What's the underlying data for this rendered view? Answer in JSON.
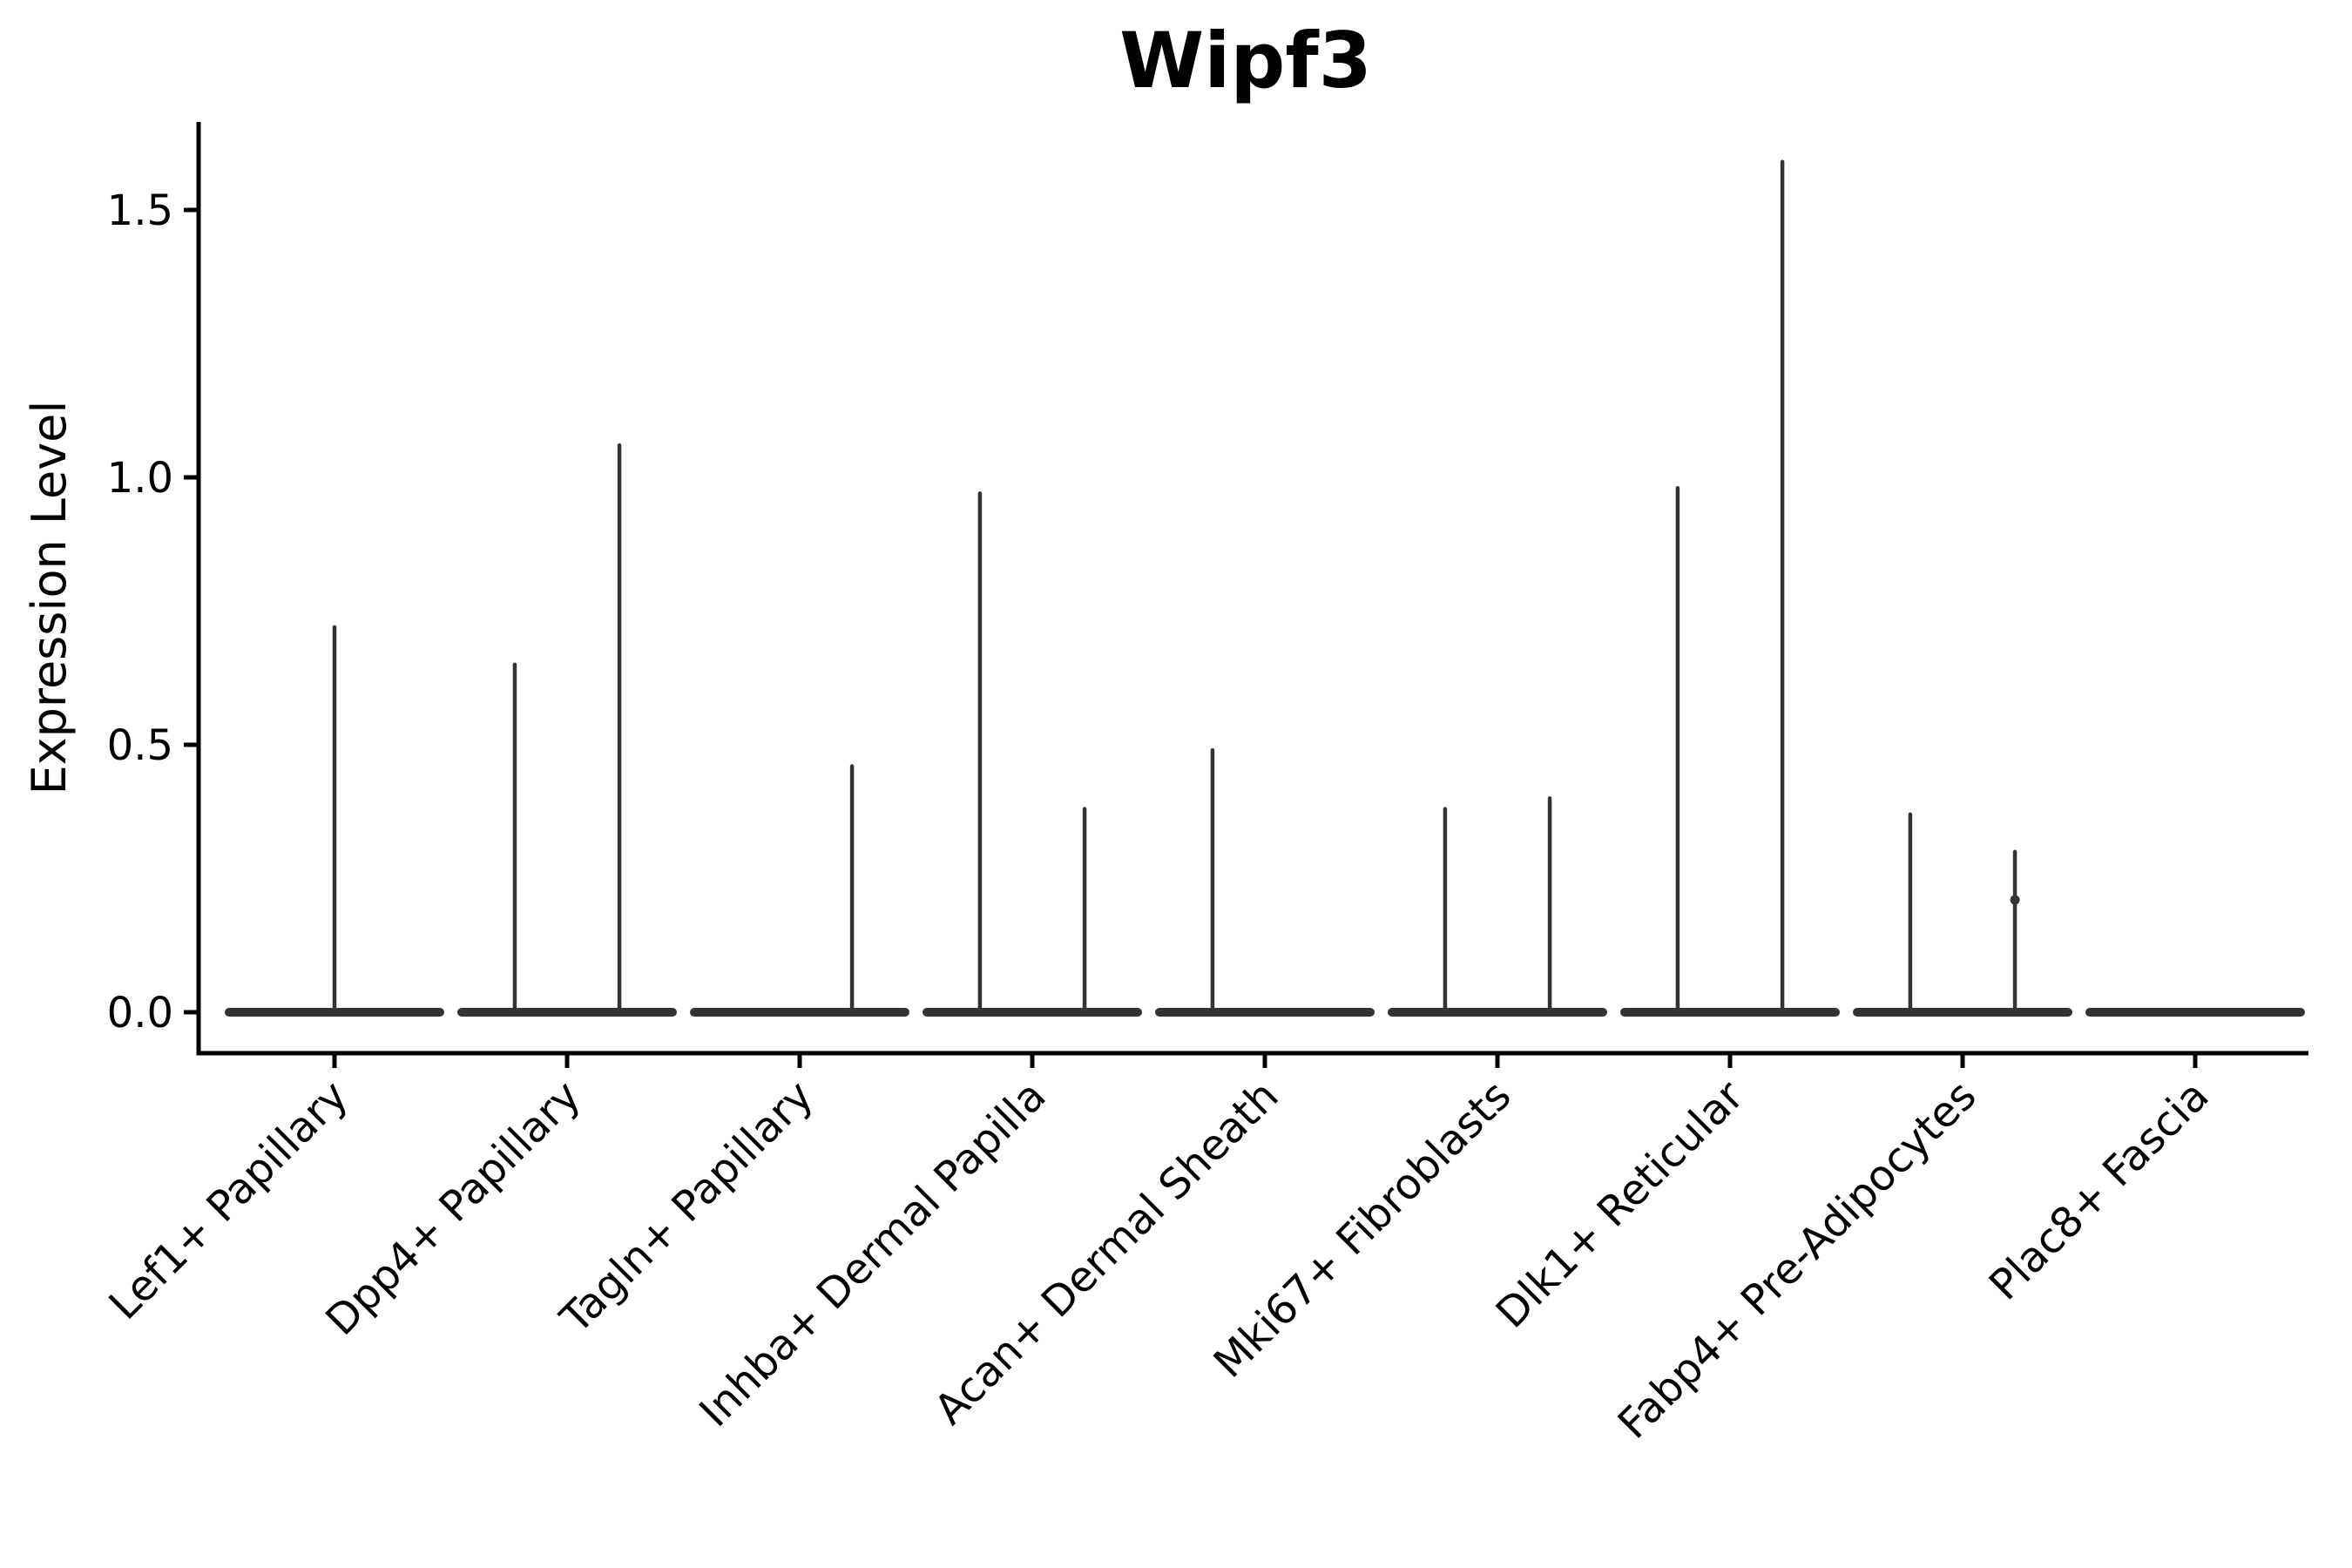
{
  "title": "Wipf3",
  "axes": {
    "y_label": "Expression Level",
    "y_ticks": [
      {
        "label": "0.0",
        "value": 0.0
      },
      {
        "label": "0.5",
        "value": 0.5
      },
      {
        "label": "1.0",
        "value": 1.0
      },
      {
        "label": "1.5",
        "value": 1.5
      }
    ],
    "x_labels": [
      "Lef1+ Papillary",
      "Dpp4+ Papillary",
      "Tagln+ Papillary",
      "Inhba+ Dermal Papilla",
      "Acan+ Dermal Sheath",
      "Mki67+ Fibroblasts",
      "Dlk1+ Reticular",
      "Fabp4+ Pre-Adipocytes",
      "Plac8+ Fascia"
    ]
  },
  "colors": {
    "ink": "#000000",
    "violin": "#333333",
    "background": "#ffffff"
  },
  "chart_data": {
    "type": "violin",
    "title": "Wipf3",
    "xlabel": "",
    "ylabel": "Expression Level",
    "ylim": [
      -0.08,
      1.67
    ],
    "y_ticks": [
      0.0,
      0.5,
      1.0,
      1.5
    ],
    "grid": false,
    "legend": "none",
    "categories": [
      "Lef1+ Papillary",
      "Dpp4+ Papillary",
      "Tagln+ Papillary",
      "Inhba+ Dermal Papilla",
      "Acan+ Dermal Sheath",
      "Mki67+ Fibroblasts",
      "Dlk1+ Reticular",
      "Fabp4+ Pre-Adipocytes",
      "Plac8+ Fascia"
    ],
    "violins": [
      {
        "category": "Lef1+ Papillary",
        "baseline_value": 0,
        "spikes": [
          {
            "pos": 0.0,
            "max": 0.72
          }
        ]
      },
      {
        "category": "Dpp4+ Papillary",
        "baseline_value": 0,
        "spikes": [
          {
            "pos": -0.225,
            "max": 0.65
          },
          {
            "pos": 0.225,
            "max": 1.06
          }
        ]
      },
      {
        "category": "Tagln+ Papillary",
        "baseline_value": 0,
        "spikes": [
          {
            "pos": 0.225,
            "max": 0.46
          }
        ]
      },
      {
        "category": "Inhba+ Dermal Papilla",
        "baseline_value": 0,
        "spikes": [
          {
            "pos": -0.225,
            "max": 0.97
          },
          {
            "pos": 0.225,
            "max": 0.38
          }
        ]
      },
      {
        "category": "Acan+ Dermal Sheath",
        "baseline_value": 0,
        "spikes": [
          {
            "pos": -0.225,
            "max": 0.49
          }
        ]
      },
      {
        "category": "Mki67+ Fibroblasts",
        "baseline_value": 0,
        "spikes": [
          {
            "pos": -0.225,
            "max": 0.38
          },
          {
            "pos": 0.225,
            "max": 0.4
          }
        ]
      },
      {
        "category": "Dlk1+ Reticular",
        "baseline_value": 0,
        "spikes": [
          {
            "pos": -0.225,
            "max": 0.98
          },
          {
            "pos": 0.225,
            "max": 1.59
          }
        ]
      },
      {
        "category": "Fabp4+ Pre-Adipocytes",
        "baseline_value": 0,
        "spikes": [
          {
            "pos": -0.225,
            "max": 0.37
          },
          {
            "pos": 0.225,
            "max": 0.3
          }
        ],
        "points": [
          {
            "pos": 0.225,
            "value": 0.21
          }
        ]
      },
      {
        "category": "Plac8+ Fascia",
        "baseline_value": 0,
        "spikes": []
      }
    ]
  }
}
